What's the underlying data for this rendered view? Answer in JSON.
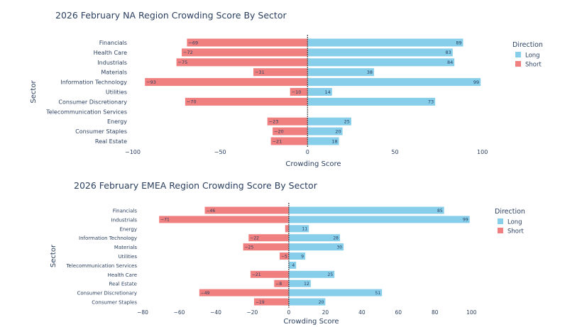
{
  "chart_data": [
    {
      "type": "bar",
      "orientation": "horizontal",
      "title": "2026 February NA Region Crowding Score By Sector",
      "xlabel": "Crowding Score",
      "ylabel": "Sector",
      "xlim": [
        -100,
        105
      ],
      "xticks": [
        -100,
        -50,
        0,
        50,
        100
      ],
      "xtick_labels": [
        "−100",
        "−50",
        "0",
        "50",
        "100"
      ],
      "categories": [
        "Financials",
        "Health Care",
        "Industrials",
        "Materials",
        "Information Technology",
        "Utilities",
        "Consumer Discretionary",
        "Telecommunication Services",
        "Energy",
        "Consumer Staples",
        "Real Estate"
      ],
      "series": [
        {
          "name": "Long",
          "color": "#87ceeb",
          "values": [
            89,
            83,
            84,
            38,
            99,
            14,
            73,
            0,
            25,
            20,
            18
          ],
          "labels": [
            "89",
            "83",
            "84",
            "38",
            "99",
            "14",
            "73",
            "",
            "25",
            "20",
            "18"
          ]
        },
        {
          "name": "Short",
          "color": "#f08080",
          "values": [
            -69,
            -72,
            -75,
            -31,
            -93,
            -10,
            -70,
            0,
            -23,
            -20,
            -21
          ],
          "labels": [
            "−69",
            "−72",
            "−75",
            "−31",
            "−93",
            "−10",
            "−70",
            "",
            "−23",
            "−20",
            "−21"
          ]
        }
      ],
      "legend": {
        "title": "Direction",
        "position": "right"
      }
    },
    {
      "type": "bar",
      "orientation": "horizontal",
      "title": "2026 February EMEA Region Crowding Score By Sector",
      "xlabel": "Crowding Score",
      "ylabel": "Sector",
      "xlim": [
        -80,
        103
      ],
      "xticks": [
        -80,
        -60,
        -40,
        -20,
        0,
        20,
        40,
        60,
        80,
        100
      ],
      "xtick_labels": [
        "−80",
        "−60",
        "−40",
        "−20",
        "0",
        "20",
        "40",
        "60",
        "80",
        "100"
      ],
      "categories": [
        "Financials",
        "Industrials",
        "Energy",
        "Information Technology",
        "Materials",
        "Utilities",
        "Telecommunication Services",
        "Health Care",
        "Real Estate",
        "Consumer Discretionary",
        "Consumer Staples"
      ],
      "series": [
        {
          "name": "Long",
          "color": "#87ceeb",
          "values": [
            85,
            99,
            11,
            28,
            30,
            9,
            4,
            25,
            12,
            51,
            20
          ],
          "labels": [
            "85",
            "99",
            "11",
            "28",
            "30",
            "9",
            "4",
            "25",
            "12",
            "51",
            "20"
          ]
        },
        {
          "name": "Short",
          "color": "#f08080",
          "values": [
            -46,
            -71,
            -2,
            -22,
            -25,
            -5,
            0,
            -21,
            -8,
            -49,
            -19
          ],
          "labels": [
            "−46",
            "−71",
            "",
            "−22",
            "−25",
            "−5",
            "",
            "−21",
            "−8",
            "−49",
            "−19"
          ]
        }
      ],
      "legend": {
        "title": "Direction",
        "position": "right"
      }
    }
  ]
}
